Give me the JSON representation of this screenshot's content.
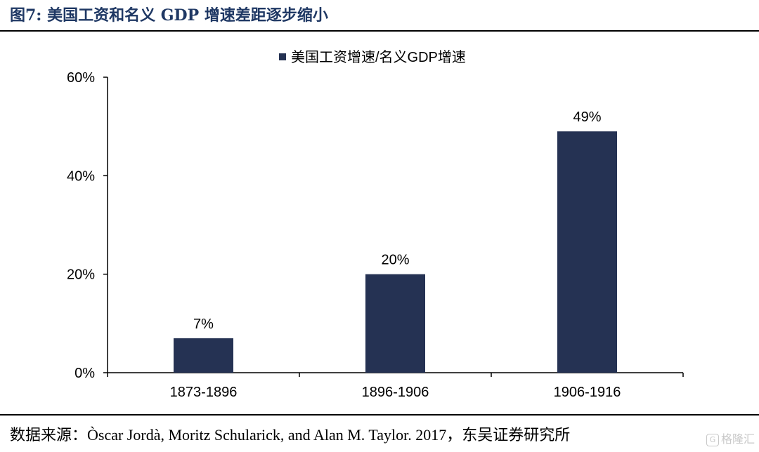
{
  "figure": {
    "title": "图7:  美国工资和名义 GDP 增速差距逐步缩小",
    "source": "数据来源：Òscar Jordà, Moritz Schularick, and Alan M. Taylor. 2017，东吴证券研究所",
    "watermark": "格隆汇",
    "watermark_icon": "G"
  },
  "chart_data": {
    "type": "bar",
    "categories": [
      "1873-1896",
      "1896-1906",
      "1906-1916"
    ],
    "series": [
      {
        "name": "美国工资增速/名义GDP增速",
        "values": [
          7,
          20,
          49
        ],
        "color": "#253253"
      }
    ],
    "data_labels": [
      "7%",
      "20%",
      "49%"
    ],
    "yticks": [
      0,
      20,
      40,
      60
    ],
    "ytick_labels": [
      "0%",
      "20%",
      "40%",
      "60%"
    ],
    "ylim": [
      0,
      60
    ],
    "title": "",
    "xlabel": "",
    "ylabel": "",
    "legend": "top",
    "grid": false
  }
}
